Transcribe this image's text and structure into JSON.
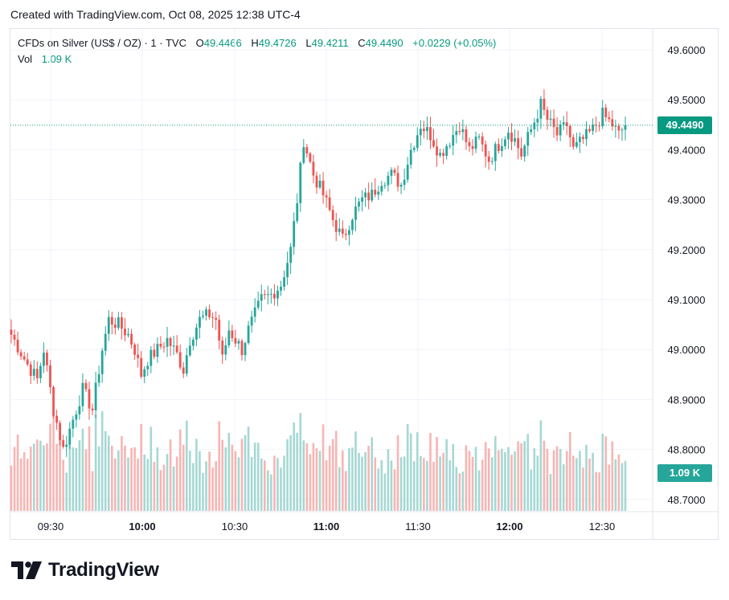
{
  "header": {
    "created": "Created with TradingView.com, Oct 08, 2025 12:38 UTC-4"
  },
  "legend": {
    "symbol": "CFDs on Silver (US$ / OZ) · 1 · TVC",
    "open_label": "O",
    "open": "49.4466",
    "high_label": "H",
    "high": "49.4726",
    "low_label": "L",
    "low": "49.4211",
    "close_label": "C",
    "close": "49.4490",
    "change": "+0.0229 (+0.05%)",
    "vol_label": "Vol",
    "vol": "1.09 K"
  },
  "brand": {
    "name": "TradingView"
  },
  "colors": {
    "up": "#26a69a",
    "down": "#ef5350",
    "up_vol": "#a5d8d3",
    "down_vol": "#f7b5b3",
    "accent": "#089981"
  },
  "chart_data": {
    "type": "candlestick",
    "y_ticks": [
      "49.6000",
      "49.5000",
      "49.4000",
      "49.3000",
      "49.2000",
      "49.1000",
      "49.0000",
      "48.9000",
      "48.8000",
      "48.7000"
    ],
    "y_range": [
      48.68,
      49.62
    ],
    "x_ticks": [
      "09:30",
      "10:00",
      "10:30",
      "11:00",
      "11:30",
      "12:00",
      "12:30"
    ],
    "x_ticks_bold": [
      false,
      true,
      false,
      true,
      false,
      true,
      false
    ],
    "last_price": "49.4490",
    "last_volume": "1.09 K",
    "anchors": [
      [
        0,
        49.03
      ],
      [
        5,
        48.97
      ],
      [
        8,
        48.94
      ],
      [
        10,
        49.0
      ],
      [
        13,
        48.88
      ],
      [
        16,
        48.8
      ],
      [
        19,
        48.86
      ],
      [
        22,
        48.92
      ],
      [
        25,
        48.88
      ],
      [
        28,
        49.0
      ],
      [
        30,
        49.06
      ],
      [
        33,
        49.05
      ],
      [
        36,
        49.03
      ],
      [
        38,
        49.0
      ],
      [
        40,
        48.95
      ],
      [
        42,
        48.98
      ],
      [
        45,
        49.0
      ],
      [
        48,
        49.02
      ],
      [
        51,
        48.99
      ],
      [
        53,
        48.96
      ],
      [
        55,
        49.02
      ],
      [
        58,
        49.06
      ],
      [
        61,
        49.07
      ],
      [
        63,
        49.06
      ],
      [
        65,
        48.98
      ],
      [
        67,
        49.04
      ],
      [
        69,
        49.02
      ],
      [
        71,
        49.0
      ],
      [
        73,
        49.04
      ],
      [
        75,
        49.07
      ],
      [
        77,
        49.1
      ],
      [
        80,
        49.11
      ],
      [
        83,
        49.13
      ],
      [
        86,
        49.2
      ],
      [
        88,
        49.3
      ],
      [
        90,
        49.42
      ],
      [
        93,
        49.35
      ],
      [
        96,
        49.31
      ],
      [
        99,
        49.26
      ],
      [
        102,
        49.22
      ],
      [
        105,
        49.27
      ],
      [
        108,
        49.3
      ],
      [
        111,
        49.31
      ],
      [
        114,
        49.34
      ],
      [
        117,
        49.35
      ],
      [
        120,
        49.33
      ],
      [
        123,
        49.4
      ],
      [
        126,
        49.45
      ],
      [
        129,
        49.43
      ],
      [
        132,
        49.39
      ],
      [
        135,
        49.42
      ],
      [
        138,
        49.45
      ],
      [
        141,
        49.4
      ],
      [
        144,
        49.42
      ],
      [
        147,
        49.38
      ],
      [
        150,
        49.41
      ],
      [
        153,
        49.44
      ],
      [
        155,
        49.42
      ],
      [
        157,
        49.39
      ],
      [
        160,
        49.44
      ],
      [
        163,
        49.49
      ],
      [
        165,
        49.46
      ],
      [
        168,
        49.43
      ],
      [
        171,
        49.45
      ],
      [
        173,
        49.4
      ],
      [
        176,
        49.42
      ],
      [
        179,
        49.44
      ],
      [
        182,
        49.47
      ],
      [
        185,
        49.45
      ],
      [
        187,
        49.43
      ],
      [
        189,
        49.45
      ]
    ],
    "candle_count": 190,
    "volume_range": [
      0,
      160
    ]
  }
}
